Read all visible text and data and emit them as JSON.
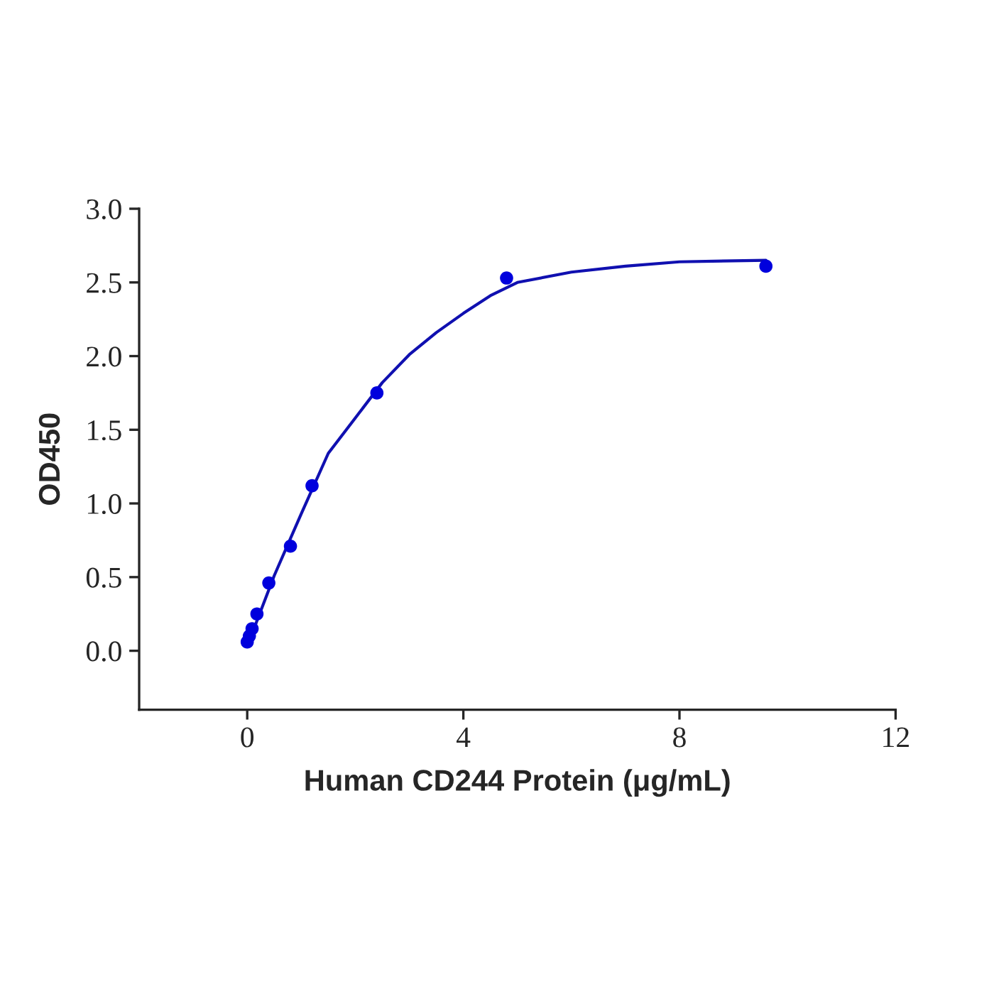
{
  "chart_data": {
    "type": "scatter",
    "xlabel": "Human CD244 Protein (μg/mL)",
    "ylabel": "OD450",
    "series": [
      {
        "color": "#0000dd",
        "marker": "circle",
        "x": [
          0,
          0.04,
          0.09,
          0.18,
          0.4,
          0.8,
          1.2,
          2.4,
          4.8,
          9.6
        ],
        "values": [
          0.06,
          0.1,
          0.15,
          0.25,
          0.46,
          0.71,
          1.12,
          1.75,
          2.53,
          2.61
        ]
      },
      {
        "type": "line",
        "color": "#1010b0",
        "marker": "none",
        "line_style": "solid",
        "x": [
          0,
          0.5,
          1,
          1.5,
          2,
          2.5,
          3,
          3.5,
          4,
          4.5,
          5,
          6,
          7,
          8,
          9.6
        ],
        "values": [
          0.03,
          0.51,
          0.93,
          1.34,
          1.58,
          1.82,
          2.01,
          2.16,
          2.29,
          2.41,
          2.5,
          2.57,
          2.61,
          2.64,
          2.65
        ]
      }
    ],
    "xlim": [
      -2,
      12
    ],
    "xticks": [
      0,
      4,
      8,
      12
    ],
    "ylim": [
      -0.4,
      3.0
    ],
    "yticks": [
      {
        "value": 0,
        "label": "0.0"
      },
      {
        "value": 0.5,
        "label": "0.5"
      },
      {
        "value": 1,
        "label": "1.0"
      },
      {
        "value": 1.5,
        "label": "1.5"
      },
      {
        "value": 2,
        "label": "2.0"
      },
      {
        "value": 2.5,
        "label": "2.5"
      },
      {
        "value": 3,
        "label": "3.0"
      }
    ],
    "grid": false,
    "legend": false
  }
}
